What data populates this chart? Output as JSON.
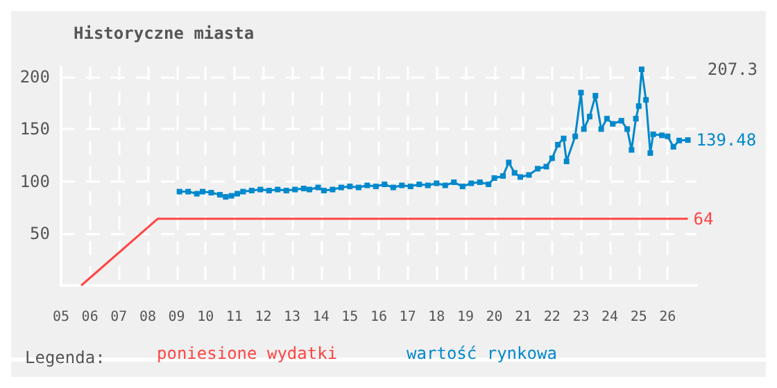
{
  "chart_data": {
    "type": "line",
    "title": "Historyczne miasta",
    "legend_title": "Legenda:",
    "xlim": [
      2005,
      2027
    ],
    "ylim": [
      0,
      210
    ],
    "xticks": [
      {
        "value": 2005,
        "label": "05"
      },
      {
        "value": 2006,
        "label": "06"
      },
      {
        "value": 2007,
        "label": "07"
      },
      {
        "value": 2008,
        "label": "08"
      },
      {
        "value": 2009,
        "label": "09"
      },
      {
        "value": 2010,
        "label": "10"
      },
      {
        "value": 2011,
        "label": "11"
      },
      {
        "value": 2012,
        "label": "12"
      },
      {
        "value": 2013,
        "label": "13"
      },
      {
        "value": 2014,
        "label": "14"
      },
      {
        "value": 2015,
        "label": "15"
      },
      {
        "value": 2016,
        "label": "16"
      },
      {
        "value": 2017,
        "label": "17"
      },
      {
        "value": 2018,
        "label": "18"
      },
      {
        "value": 2019,
        "label": "19"
      },
      {
        "value": 2020,
        "label": "20"
      },
      {
        "value": 2021,
        "label": "21"
      },
      {
        "value": 2022,
        "label": "22"
      },
      {
        "value": 2023,
        "label": "23"
      },
      {
        "value": 2024,
        "label": "24"
      },
      {
        "value": 2025,
        "label": "25"
      },
      {
        "value": 2026,
        "label": "26"
      }
    ],
    "yticks": [
      50,
      100,
      150,
      200
    ],
    "grid": true,
    "legend": "bottom",
    "annotations": [
      "207.3"
    ],
    "series": [
      {
        "name": "poniesione wydatki",
        "color": "#ff4444",
        "marker": "none",
        "x": [
          2005.7,
          2008.35,
          2026.7
        ],
        "values": [
          0,
          64,
          64
        ],
        "value_labels": [
          null,
          null,
          "64"
        ]
      },
      {
        "name": "wartość rynkowa",
        "color": "#0088cc",
        "marker": "square",
        "x": [
          2009.1,
          2009.4,
          2009.7,
          2009.9,
          2010.2,
          2010.5,
          2010.7,
          2010.9,
          2011.1,
          2011.3,
          2011.6,
          2011.9,
          2012.2,
          2012.5,
          2012.8,
          2013.1,
          2013.4,
          2013.6,
          2013.9,
          2014.1,
          2014.4,
          2014.7,
          2015.0,
          2015.3,
          2015.6,
          2015.9,
          2016.2,
          2016.5,
          2016.8,
          2017.1,
          2017.4,
          2017.7,
          2018.0,
          2018.3,
          2018.6,
          2018.9,
          2019.2,
          2019.5,
          2019.8,
          2020.0,
          2020.3,
          2020.5,
          2020.7,
          2020.9,
          2021.2,
          2021.5,
          2021.8,
          2022.0,
          2022.2,
          2022.4,
          2022.5,
          2022.8,
          2023.0,
          2023.1,
          2023.3,
          2023.5,
          2023.7,
          2023.9,
          2024.1,
          2024.4,
          2024.6,
          2024.75,
          2024.9,
          2025.0,
          2025.1,
          2025.25,
          2025.4,
          2025.5,
          2025.8,
          2026.0,
          2026.2,
          2026.4,
          2026.7
        ],
        "values": [
          90,
          90,
          88,
          90,
          89,
          87,
          85,
          86,
          88,
          90,
          91,
          92,
          91,
          92,
          91,
          92,
          93,
          92,
          94,
          91,
          92,
          94,
          95,
          94,
          96,
          95,
          97,
          94,
          96,
          95,
          97,
          96,
          98,
          96,
          99,
          95,
          98,
          99,
          97,
          103,
          105,
          118,
          108,
          104,
          106,
          112,
          114,
          122,
          135,
          141,
          119,
          143,
          185,
          150,
          162,
          182,
          150,
          160,
          155,
          158,
          150,
          130,
          160,
          172,
          207.3,
          178,
          127,
          145,
          144,
          143,
          133,
          139,
          139.48
        ],
        "value_labels": [
          null,
          null,
          null,
          null,
          null,
          null,
          null,
          null,
          null,
          null,
          null,
          null,
          null,
          null,
          null,
          null,
          null,
          null,
          null,
          null,
          null,
          null,
          null,
          null,
          null,
          null,
          null,
          null,
          null,
          null,
          null,
          null,
          null,
          null,
          null,
          null,
          null,
          null,
          null,
          null,
          null,
          null,
          null,
          null,
          null,
          null,
          null,
          null,
          null,
          null,
          null,
          null,
          null,
          null,
          null,
          null,
          null,
          null,
          null,
          null,
          null,
          null,
          null,
          null,
          null,
          null,
          null,
          null,
          null,
          null,
          null,
          null,
          "139.48"
        ]
      }
    ]
  }
}
